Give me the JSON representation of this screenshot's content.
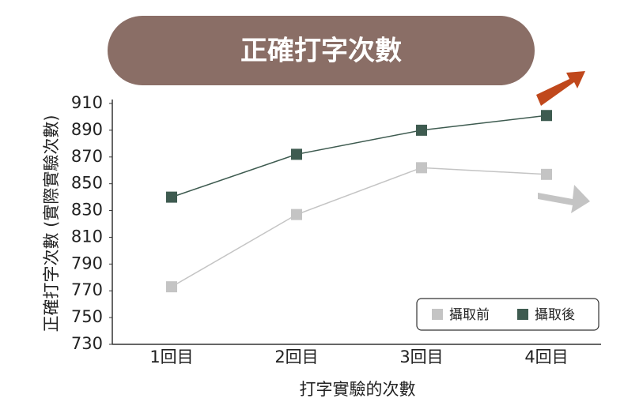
{
  "chart_data": {
    "type": "line",
    "title": "正確打字次數",
    "x_label": "打字實驗的次數",
    "y_label": "正確打字次數 (實際實驗次數)",
    "categories": [
      "1回目",
      "2回目",
      "3回目",
      "4回目"
    ],
    "series": [
      {
        "name": "攝取前",
        "color": "#c4c4c4",
        "values": [
          773,
          827,
          862,
          857
        ]
      },
      {
        "name": "攝取後",
        "color": "#3e5b50",
        "values": [
          840,
          872,
          890,
          901
        ]
      }
    ],
    "ylim": [
      730,
      910
    ],
    "yticks": [
      730,
      750,
      770,
      790,
      810,
      830,
      850,
      870,
      890,
      910
    ],
    "grid": false,
    "legend": "lower right"
  }
}
